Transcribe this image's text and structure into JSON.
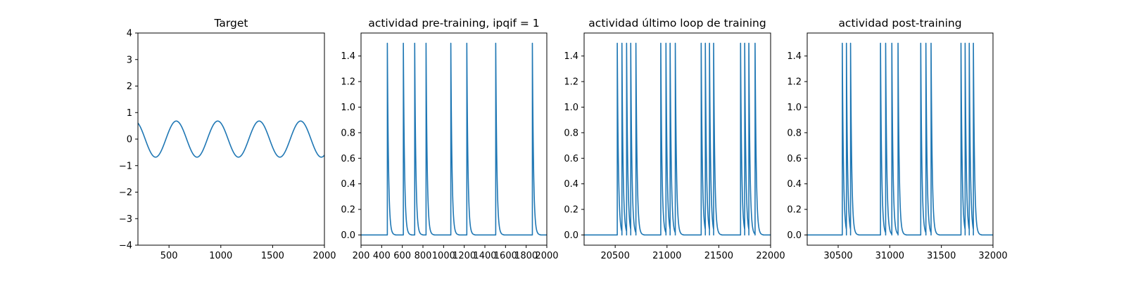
{
  "colors": {
    "series": "#1f77b4"
  },
  "chart_data": [
    {
      "type": "line",
      "title": "Target",
      "xlim": [
        200,
        2000
      ],
      "ylim": [
        -4,
        4
      ],
      "xticks": [
        500,
        1000,
        1500,
        2000
      ],
      "yticks": [
        -4,
        -3,
        -2,
        -1,
        0,
        1,
        2,
        3,
        4
      ],
      "xtick_labels": [
        "500",
        "1000",
        "1500",
        "2000"
      ],
      "ytick_labels": [
        "−4",
        "−3",
        "−2",
        "−1",
        "0",
        "1",
        "2",
        "3",
        "4"
      ],
      "series": [
        {
          "function": "sine",
          "amplitude": 0.68,
          "period": 400,
          "phase_peak_x": 570,
          "x_range": [
            200,
            2000
          ]
        }
      ]
    },
    {
      "type": "line",
      "title": "actividad pre-training, ipqif = 1",
      "xlim": [
        200,
        2000
      ],
      "ylim": [
        -0.08,
        1.58
      ],
      "xticks": [
        200,
        400,
        600,
        800,
        1000,
        1200,
        1400,
        1600,
        1800,
        2000
      ],
      "yticks": [
        0.0,
        0.2,
        0.4,
        0.6,
        0.8,
        1.0,
        1.2,
        1.4
      ],
      "xtick_labels": [
        "200",
        "400",
        "600",
        "800",
        "1000",
        "1200",
        "1400",
        "1600",
        "1800",
        "2000"
      ],
      "ytick_labels": [
        "0.0",
        "0.2",
        "0.4",
        "0.6",
        "0.8",
        "1.0",
        "1.2",
        "1.4"
      ],
      "series": [
        {
          "spike_peak": 1.5,
          "spike_times": [
            455,
            610,
            720,
            830,
            1070,
            1225,
            1505,
            1860
          ]
        }
      ]
    },
    {
      "type": "line",
      "title": "actividad último loop de training",
      "xlim": [
        20200,
        22000
      ],
      "ylim": [
        -0.08,
        1.58
      ],
      "xticks": [
        20500,
        21000,
        21500,
        22000
      ],
      "yticks": [
        0.0,
        0.2,
        0.4,
        0.6,
        0.8,
        1.0,
        1.2,
        1.4
      ],
      "xtick_labels": [
        "20500",
        "21000",
        "21500",
        "22000"
      ],
      "ytick_labels": [
        "0.0",
        "0.2",
        "0.4",
        "0.6",
        "0.8",
        "1.0",
        "1.2",
        "1.4"
      ],
      "series": [
        {
          "spike_peak": 1.5,
          "spike_times": [
            20520,
            20565,
            20610,
            20650,
            20700,
            20940,
            20990,
            21030,
            21080,
            21330,
            21370,
            21410,
            21450,
            21710,
            21750,
            21790,
            21850
          ]
        }
      ]
    },
    {
      "type": "line",
      "title": "actividad post-training",
      "xlim": [
        30200,
        32000
      ],
      "ylim": [
        -0.08,
        1.58
      ],
      "xticks": [
        30500,
        31000,
        31500,
        32000
      ],
      "yticks": [
        0.0,
        0.2,
        0.4,
        0.6,
        0.8,
        1.0,
        1.2,
        1.4
      ],
      "xtick_labels": [
        "30500",
        "31000",
        "31500",
        "32000"
      ],
      "ytick_labels": [
        "0.0",
        "0.2",
        "0.4",
        "0.6",
        "0.8",
        "1.0",
        "1.2",
        "1.4"
      ],
      "series": [
        {
          "spike_peak": 1.5,
          "spike_times": [
            30540,
            30580,
            30620,
            30910,
            30960,
            31020,
            31080,
            31300,
            31350,
            31400,
            31690,
            31730,
            31770,
            31810
          ]
        }
      ]
    }
  ]
}
